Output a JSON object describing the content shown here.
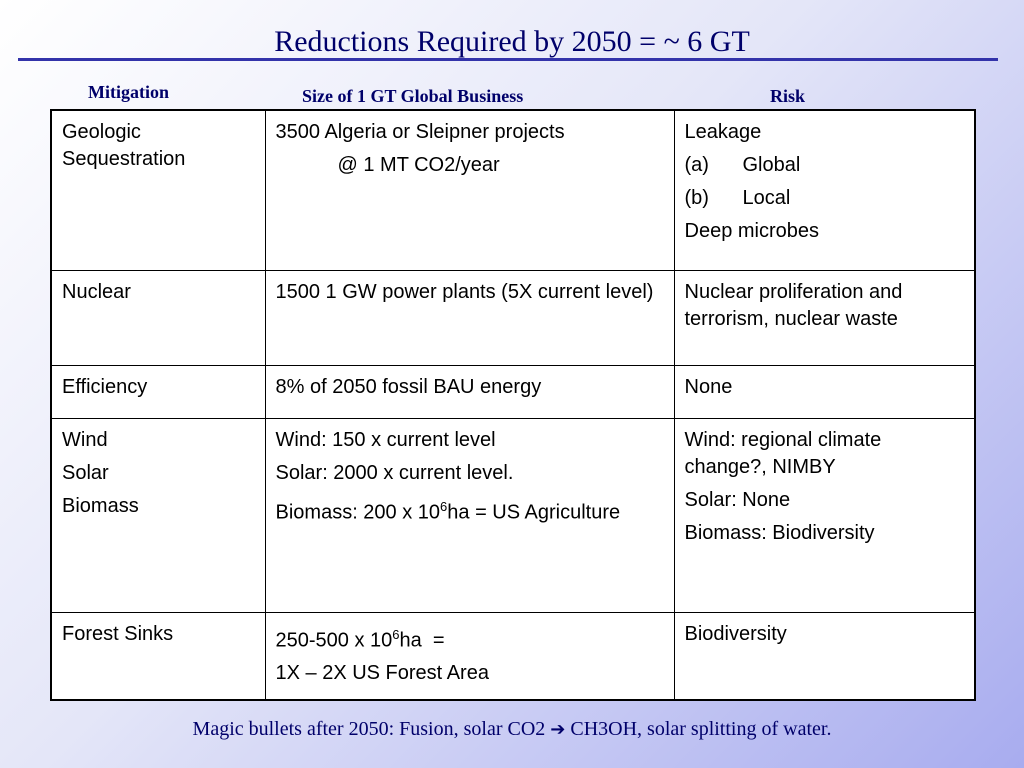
{
  "slide": {
    "title": "Reductions Required by 2050 = ~ 6 GT",
    "col_mitigation": "Mitigation",
    "col_size": "Size of 1 GT Global Business",
    "col_risk": "Risk"
  },
  "table": {
    "rows": [
      {
        "mitigation": [
          "Geologic",
          "Sequestration"
        ],
        "size": [
          "3500 Algeria or Sleipner projects",
          "@ 1 MT CO2/year"
        ],
        "risk": [
          "Leakage",
          "(a)",
          "Global",
          "(b)",
          "Local",
          "Deep microbes"
        ]
      },
      {
        "mitigation": [
          "Nuclear"
        ],
        "size": [
          "1500 1 GW power plants (5X current level)"
        ],
        "risk": [
          "Nuclear proliferation and terrorism, nuclear waste"
        ]
      },
      {
        "mitigation": [
          "Efficiency"
        ],
        "size": [
          "8% of 2050 fossil BAU energy"
        ],
        "risk": [
          "None"
        ]
      },
      {
        "mitigation": [
          "Wind",
          "Solar",
          "Biomass"
        ],
        "size": [
          "Wind: 150 x current level",
          "Solar: 2000 x current level.",
          "Biomass: 200 x 10",
          "6",
          "ha = US Agriculture"
        ],
        "risk": [
          "Wind: regional climate change?, NIMBY",
          "Solar: None",
          "Biomass: Biodiversity"
        ]
      },
      {
        "mitigation": [
          "Forest Sinks"
        ],
        "size": [
          "250-500 x 10",
          "6",
          "ha  =",
          "1X – 2X US Forest Area"
        ],
        "risk": [
          "Biodiversity"
        ]
      }
    ]
  },
  "footer": {
    "text_before": "Magic bullets after 2050: Fusion, solar CO2",
    "arrow_icon": "right-arrow-icon",
    "text_after": "CH3OH, solar splitting of water."
  }
}
